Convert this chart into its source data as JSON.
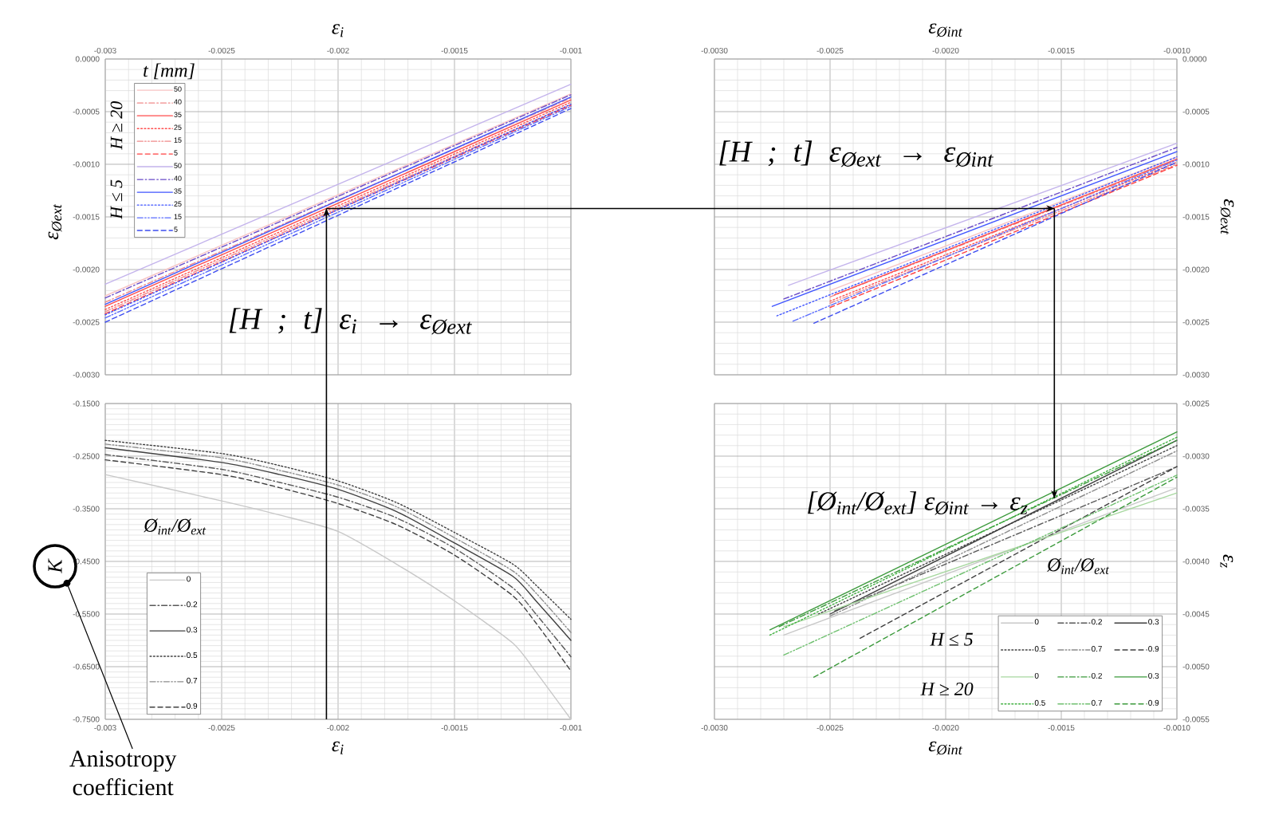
{
  "chart_data": [
    {
      "type": "line",
      "xlabel": "ε$_{i}$",
      "ylabel": "ε$_{Øext}$",
      "legend_title": "t [mm]",
      "legend": "top left",
      "grid": true,
      "xlim": [
        -0.003,
        -0.001
      ],
      "xticks": [
        -0.003,
        -0.0025,
        -0.002,
        -0.0015,
        -0.001
      ],
      "ylim": [
        -0.003,
        0
      ],
      "yticks": [
        {
          "value": 0,
          "label": "0.0000"
        },
        -0.0005,
        {
          "value": -0.001,
          "label": "-0.0010"
        },
        -0.0015,
        {
          "value": -0.002,
          "label": "-0.0020"
        },
        -0.0025,
        {
          "value": -0.003,
          "label": "-0.0030"
        }
      ],
      "x": [
        -0.003,
        -0.001
      ],
      "series": [
        {
          "name": "50",
          "color": "#f7c4c4",
          "line_style": "solid",
          "values": [
            -0.00225,
            -0.00033
          ]
        },
        {
          "name": "40",
          "color": "#f08a8a",
          "line_style": "dashdot",
          "values": [
            -0.00231,
            -0.00037
          ]
        },
        {
          "name": "35",
          "color": "#ff4d4d",
          "line_style": "solid",
          "values": [
            -0.00235,
            -0.00039
          ]
        },
        {
          "name": "25",
          "color": "#ff5050",
          "line_style": "dotted",
          "values": [
            -0.00238,
            -0.00041
          ]
        },
        {
          "name": "15",
          "color": "#f08a8a",
          "line_style": "dashdotdot",
          "values": [
            -0.0024,
            -0.00043
          ]
        },
        {
          "name": "5",
          "color": "#ff4040",
          "line_style": "dashed",
          "values": [
            -0.00242,
            -0.00044
          ]
        },
        {
          "name": "50",
          "color": "#c4b4ec",
          "line_style": "solid",
          "values": [
            -0.00214,
            -0.00024
          ]
        },
        {
          "name": "40",
          "color": "#6a4cc8",
          "line_style": "dashdot",
          "values": [
            -0.00227,
            -0.00034
          ]
        },
        {
          "name": "35",
          "color": "#4055ff",
          "line_style": "solid",
          "values": [
            -0.00233,
            -0.00036
          ]
        },
        {
          "name": "25",
          "color": "#4055ff",
          "line_style": "dotted",
          "values": [
            -0.00243,
            -0.00043
          ]
        },
        {
          "name": "15",
          "color": "#5a6cff",
          "line_style": "dashdotdot",
          "values": [
            -0.00246,
            -0.00045
          ]
        },
        {
          "name": "5",
          "color": "#3d4cf0",
          "line_style": "dashed",
          "values": [
            -0.0025,
            -0.00047
          ]
        }
      ],
      "ref_lines": [
        {
          "axis": "x",
          "value": -0.00205
        },
        {
          "axis": "y",
          "value": -0.00142
        }
      ],
      "annotations": [
        "H ≥ 20",
        "H ≤ 5",
        "[H ; t] ε$_{i}$ → ε$_{Øext}$"
      ]
    },
    {
      "type": "line",
      "xlabel": "ε$_{Øint}$",
      "ylabel": "ε$_{Øext}$",
      "grid": true,
      "xlim": [
        -0.003,
        -0.001
      ],
      "xticks": [
        {
          "value": -0.003,
          "label": "-0.0030"
        },
        -0.0025,
        {
          "value": -0.002,
          "label": "-0.0020"
        },
        -0.0015,
        {
          "value": -0.001,
          "label": "-0.0010"
        }
      ],
      "ylim": [
        -0.003,
        0
      ],
      "yticks": [
        {
          "value": 0,
          "label": "0.0000"
        },
        -0.0005,
        {
          "value": -0.001,
          "label": "-0.0010"
        },
        -0.0015,
        {
          "value": -0.002,
          "label": "-0.0020"
        },
        -0.0025,
        {
          "value": -0.003,
          "label": "-0.0030"
        }
      ],
      "series": [
        {
          "color": "#f7c4c4",
          "line_style": "solid",
          "x": [
            -0.0025,
            -0.001
          ],
          "values": [
            -0.0022,
            -0.00093
          ]
        },
        {
          "color": "#f08a8a",
          "line_style": "dashdot",
          "x": [
            -0.0025,
            -0.001
          ],
          "values": [
            -0.00226,
            -0.00096
          ]
        },
        {
          "color": "#ff4d4d",
          "line_style": "solid",
          "x": [
            -0.00248,
            -0.001
          ],
          "values": [
            -0.00224,
            -0.00095
          ]
        },
        {
          "color": "#ff5050",
          "line_style": "dotted",
          "x": [
            -0.0025,
            -0.001
          ],
          "values": [
            -0.0023,
            -0.00098
          ]
        },
        {
          "color": "#f08a8a",
          "line_style": "dashdotdot",
          "x": [
            -0.0025,
            -0.001
          ],
          "values": [
            -0.00232,
            -0.001
          ]
        },
        {
          "color": "#ff4040",
          "line_style": "dashed",
          "x": [
            -0.0025,
            -0.001
          ],
          "values": [
            -0.00236,
            -0.00101
          ]
        },
        {
          "color": "#c4b4ec",
          "line_style": "solid",
          "x": [
            -0.00268,
            -0.001
          ],
          "values": [
            -0.00215,
            -0.0008
          ]
        },
        {
          "color": "#6a4cc8",
          "line_style": "dashdot",
          "x": [
            -0.0027,
            -0.001
          ],
          "values": [
            -0.00228,
            -0.00084
          ]
        },
        {
          "color": "#4055ff",
          "line_style": "solid",
          "x": [
            -0.00275,
            -0.001
          ],
          "values": [
            -0.00235,
            -0.00088
          ]
        },
        {
          "color": "#4055ff",
          "line_style": "dotted",
          "x": [
            -0.00273,
            -0.001
          ],
          "values": [
            -0.00244,
            -0.00093
          ]
        },
        {
          "color": "#5a6cff",
          "line_style": "dashdotdot",
          "x": [
            -0.00266,
            -0.001
          ],
          "values": [
            -0.00249,
            -0.00096
          ]
        },
        {
          "color": "#3d4cf0",
          "line_style": "dashed",
          "x": [
            -0.00257,
            -0.001
          ],
          "values": [
            -0.00251,
            -0.00098
          ]
        }
      ],
      "ref_lines": [
        {
          "axis": "y",
          "value": -0.00142
        },
        {
          "axis": "x",
          "value": -0.00153
        }
      ],
      "annotations": [
        "[H ; t] ε$_{Øext}$ → ε$_{Øint}$"
      ]
    },
    {
      "type": "line",
      "xlabel": "ε$_{i}$",
      "ylabel": "K",
      "legend_title": "Ø$_{int}$/Ø$_{ext}$",
      "legend": "bottom left",
      "grid": true,
      "xlim": [
        -0.003,
        -0.001
      ],
      "xticks": [
        -0.003,
        -0.0025,
        -0.002,
        -0.0015,
        -0.001
      ],
      "ylim": [
        -0.75,
        -0.15
      ],
      "yticks": [
        {
          "value": -0.15,
          "label": "-0.1500"
        },
        {
          "value": -0.25,
          "label": "-0.2500"
        },
        {
          "value": -0.35,
          "label": "-0.3500"
        },
        {
          "value": -0.45,
          "label": "-0.4500"
        },
        {
          "value": -0.55,
          "label": "-0.5500"
        },
        {
          "value": -0.65,
          "label": "-0.6500"
        },
        {
          "value": -0.75,
          "label": "-0.7500"
        }
      ],
      "x": [
        -0.003,
        -0.0025,
        -0.00225,
        -0.002,
        -0.00175,
        -0.0015,
        -0.00125,
        -0.00115,
        -0.001
      ],
      "series": [
        {
          "name": "0",
          "color": "#c8c8c8",
          "line_style": "solid",
          "values": [
            -0.285,
            -0.335,
            -0.362,
            -0.393,
            -0.455,
            -0.525,
            -0.605,
            -0.66,
            -0.75
          ]
        },
        {
          "name": "0.2",
          "color": "#595959",
          "line_style": "dashdot",
          "values": [
            -0.247,
            -0.275,
            -0.3,
            -0.328,
            -0.367,
            -0.425,
            -0.5,
            -0.55,
            -0.631
          ]
        },
        {
          "name": "0.3",
          "color": "#404040",
          "line_style": "solid",
          "values": [
            -0.234,
            -0.262,
            -0.285,
            -0.313,
            -0.355,
            -0.415,
            -0.478,
            -0.525,
            -0.6
          ]
        },
        {
          "name": "0.5",
          "color": "#404040",
          "line_style": "dotted",
          "values": [
            -0.22,
            -0.245,
            -0.268,
            -0.297,
            -0.338,
            -0.395,
            -0.455,
            -0.495,
            -0.56
          ]
        },
        {
          "name": "0.7",
          "color": "#8c8c8c",
          "line_style": "dashdotdot",
          "values": [
            -0.227,
            -0.253,
            -0.277,
            -0.305,
            -0.346,
            -0.405,
            -0.468,
            -0.51,
            -0.585
          ]
        },
        {
          "name": "0.9",
          "color": "#404040",
          "line_style": "dashed",
          "values": [
            -0.257,
            -0.285,
            -0.31,
            -0.34,
            -0.38,
            -0.438,
            -0.515,
            -0.567,
            -0.658
          ]
        }
      ],
      "ref_lines": [
        {
          "axis": "x",
          "value": -0.00205
        }
      ],
      "annotations": [
        "Anisotropy coefficient"
      ]
    },
    {
      "type": "line",
      "xlabel": "ε$_{Øint}$",
      "ylabel": "ε$_{z}$",
      "legend_title": "Ø$_{int}$/Ø$_{ext}$",
      "legend": "bottom right",
      "grid": true,
      "xlim": [
        -0.003,
        -0.001
      ],
      "xticks": [
        {
          "value": -0.003,
          "label": "-0.0030"
        },
        -0.0025,
        {
          "value": -0.002,
          "label": "-0.0020"
        },
        -0.0015,
        {
          "value": -0.001,
          "label": "-0.0010"
        }
      ],
      "ylim": [
        -0.0055,
        -0.0025
      ],
      "yticks": [
        -0.0025,
        {
          "value": -0.003,
          "label": "-0.0030"
        },
        -0.0035,
        {
          "value": -0.004,
          "label": "-0.0040"
        },
        -0.0045,
        {
          "value": -0.005,
          "label": "-0.0050"
        },
        -0.0055
      ],
      "series": [
        {
          "name": "0",
          "color": "#c8c8c8",
          "line_style": "solid",
          "x": [
            -0.0027,
            -0.001
          ],
          "values": [
            -0.0047,
            -0.0033
          ]
        },
        {
          "name": "0.2",
          "color": "#595959",
          "line_style": "dashdot",
          "x": [
            -0.00248,
            -0.001
          ],
          "values": [
            -0.00447,
            -0.0031
          ]
        },
        {
          "name": "0.3",
          "color": "#404040",
          "line_style": "solid",
          "x": [
            -0.0025,
            -0.001
          ],
          "values": [
            -0.0045,
            -0.00285
          ]
        },
        {
          "name": "0.5",
          "color": "#404040",
          "line_style": "dotted",
          "x": [
            -0.00255,
            -0.001
          ],
          "values": [
            -0.0045,
            -0.0029
          ]
        },
        {
          "name": "0.7",
          "color": "#8c8c8c",
          "line_style": "dashdotdot",
          "x": [
            -0.0025,
            -0.001
          ],
          "values": [
            -0.00452,
            -0.00295
          ]
        },
        {
          "name": "0.9",
          "color": "#404040",
          "line_style": "dashed",
          "x": [
            -0.00237,
            -0.001
          ],
          "values": [
            -0.00473,
            -0.0031
          ]
        },
        {
          "name": "0",
          "color": "#a8d8a0",
          "line_style": "solid",
          "x": [
            -0.0027,
            -0.001
          ],
          "values": [
            -0.00462,
            -0.00335
          ]
        },
        {
          "name": "0.2",
          "color": "#3c9a3c",
          "line_style": "dashdot",
          "x": [
            -0.00272,
            -0.001
          ],
          "values": [
            -0.00462,
            -0.00285
          ]
        },
        {
          "name": "0.3",
          "color": "#3c9a3c",
          "line_style": "solid",
          "x": [
            -0.00276,
            -0.001
          ],
          "values": [
            -0.00465,
            -0.00277
          ]
        },
        {
          "name": "0.5",
          "color": "#40b040",
          "line_style": "dotted",
          "x": [
            -0.00276,
            -0.001
          ],
          "values": [
            -0.0047,
            -0.00282
          ]
        },
        {
          "name": "0.7",
          "color": "#70c070",
          "line_style": "dashdotdot",
          "x": [
            -0.0027,
            -0.001
          ],
          "values": [
            -0.00489,
            -0.00318
          ]
        },
        {
          "name": "0.9",
          "color": "#3c9a3c",
          "line_style": "dashed",
          "x": [
            -0.00257,
            -0.001
          ],
          "values": [
            -0.0051,
            -0.0032
          ]
        }
      ],
      "ref_lines": [
        {
          "axis": "x",
          "value": -0.00153
        }
      ],
      "annotations": [
        "H ≤ 5",
        "H ≥ 20",
        {
          "text": "[Ø$_{int}$/Ø$_{ext}$] ε$_{Øint}$ → ε$_{z}$",
          "x": -0.00153,
          "y": -0.0034
        }
      ]
    }
  ]
}
